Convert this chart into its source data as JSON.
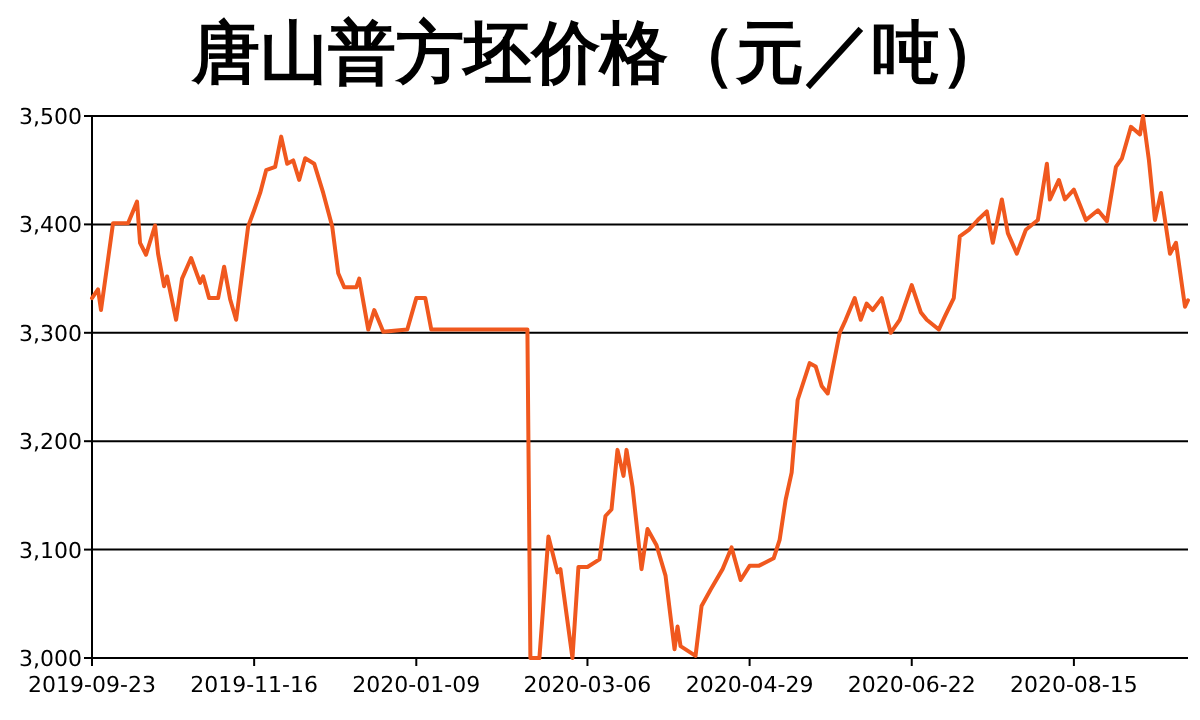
{
  "chart_data": {
    "type": "line",
    "title": "唐山普方坯价格（元／吨）",
    "x": [
      "2019-09-23",
      "2019-09-25",
      "2019-09-26",
      "2019-09-28",
      "2019-09-30",
      "2019-10-05",
      "2019-10-08",
      "2019-10-09",
      "2019-10-11",
      "2019-10-14",
      "2019-10-15",
      "2019-10-17",
      "2019-10-18",
      "2019-10-21",
      "2019-10-23",
      "2019-10-26",
      "2019-10-29",
      "2019-10-30",
      "2019-11-01",
      "2019-11-04",
      "2019-11-06",
      "2019-11-08",
      "2019-11-10",
      "2019-11-14",
      "2019-11-16",
      "2019-11-18",
      "2019-11-20",
      "2019-11-23",
      "2019-11-25",
      "2019-11-27",
      "2019-11-29",
      "2019-12-01",
      "2019-12-03",
      "2019-12-06",
      "2019-12-09",
      "2019-12-12",
      "2019-12-14",
      "2019-12-16",
      "2019-12-20",
      "2019-12-21",
      "2019-12-24",
      "2019-12-26",
      "2019-12-29",
      "2020-01-06",
      "2020-01-09",
      "2020-01-12",
      "2020-01-14",
      "2020-02-15",
      "2020-02-16",
      "2020-02-19",
      "2020-02-22",
      "2020-02-25",
      "2020-02-26",
      "2020-03-01",
      "2020-03-03",
      "2020-03-06",
      "2020-03-10",
      "2020-03-12",
      "2020-03-14",
      "2020-03-16",
      "2020-03-18",
      "2020-03-19",
      "2020-03-21",
      "2020-03-24",
      "2020-03-26",
      "2020-03-29",
      "2020-04-01",
      "2020-04-04",
      "2020-04-05",
      "2020-04-06",
      "2020-04-11",
      "2020-04-13",
      "2020-04-16",
      "2020-04-20",
      "2020-04-23",
      "2020-04-26",
      "2020-04-29",
      "2020-05-02",
      "2020-05-07",
      "2020-05-09",
      "2020-05-11",
      "2020-05-13",
      "2020-05-15",
      "2020-05-19",
      "2020-05-21",
      "2020-05-23",
      "2020-05-25",
      "2020-05-29",
      "2020-05-31",
      "2020-06-03",
      "2020-06-05",
      "2020-06-07",
      "2020-06-09",
      "2020-06-12",
      "2020-06-15",
      "2020-06-18",
      "2020-06-22",
      "2020-06-25",
      "2020-06-27",
      "2020-07-01",
      "2020-07-03",
      "2020-07-06",
      "2020-07-08",
      "2020-07-11",
      "2020-07-14",
      "2020-07-17",
      "2020-07-19",
      "2020-07-22",
      "2020-07-24",
      "2020-07-27",
      "2020-07-30",
      "2020-08-03",
      "2020-08-06",
      "2020-08-07",
      "2020-08-10",
      "2020-08-12",
      "2020-08-15",
      "2020-08-19",
      "2020-08-23",
      "2020-08-26",
      "2020-08-29",
      "2020-08-31",
      "2020-09-03",
      "2020-09-06",
      "2020-09-07",
      "2020-09-09",
      "2020-09-11",
      "2020-09-13",
      "2020-09-16",
      "2020-09-18",
      "2020-09-21",
      "2020-09-22"
    ],
    "series": [
      {
        "color": "#f0581e",
        "values": [
          3332,
          3340,
          3321,
          3361,
          3401,
          3401,
          3421,
          3383,
          3372,
          3399,
          3373,
          3343,
          3352,
          3312,
          3350,
          3369,
          3346,
          3352,
          3332,
          3332,
          3361,
          3331,
          3312,
          3398,
          3413,
          3429,
          3450,
          3453,
          3481,
          3456,
          3459,
          3441,
          3461,
          3456,
          3429,
          3398,
          3355,
          3342,
          3342,
          3350,
          3303,
          3321,
          3301,
          3303,
          3332,
          3332,
          3303,
          3303,
          3000,
          3000,
          3112,
          3079,
          3082,
          3000,
          3084,
          3084,
          3091,
          3131,
          3137,
          3192,
          3168,
          3192,
          3158,
          3082,
          3119,
          3104,
          3076,
          3008,
          3029,
          3011,
          3002,
          3048,
          3063,
          3082,
          3102,
          3072,
          3085,
          3085,
          3092,
          3109,
          3146,
          3171,
          3238,
          3272,
          3269,
          3251,
          3244,
          3300,
          3312,
          3332,
          3312,
          3327,
          3321,
          3332,
          3300,
          3312,
          3344,
          3319,
          3312,
          3303,
          3315,
          3332,
          3389,
          3395,
          3404,
          3412,
          3383,
          3423,
          3392,
          3373,
          3395,
          3404,
          3456,
          3423,
          3441,
          3423,
          3432,
          3404,
          3413,
          3403,
          3453,
          3461,
          3490,
          3483,
          3500,
          3459,
          3404,
          3429,
          3373,
          3383,
          3324,
          3330
        ]
      }
    ],
    "xlim": [
      "2019-09-23",
      "2020-09-22"
    ],
    "xticks": [
      "2019-09-23",
      "2019-11-16",
      "2020-01-09",
      "2020-03-06",
      "2020-04-29",
      "2020-06-22",
      "2020-08-15"
    ],
    "ylim": [
      3000,
      3500
    ],
    "yticks": [
      {
        "value": 3000,
        "label": "3,000"
      },
      {
        "value": 3100,
        "label": "3,100"
      },
      {
        "value": 3200,
        "label": "3,200"
      },
      {
        "value": 3300,
        "label": "3,300"
      },
      {
        "value": 3400,
        "label": "3,400"
      },
      {
        "value": 3500,
        "label": "3,500"
      }
    ],
    "grid": "y",
    "marker": "none",
    "line_style": "solid"
  }
}
